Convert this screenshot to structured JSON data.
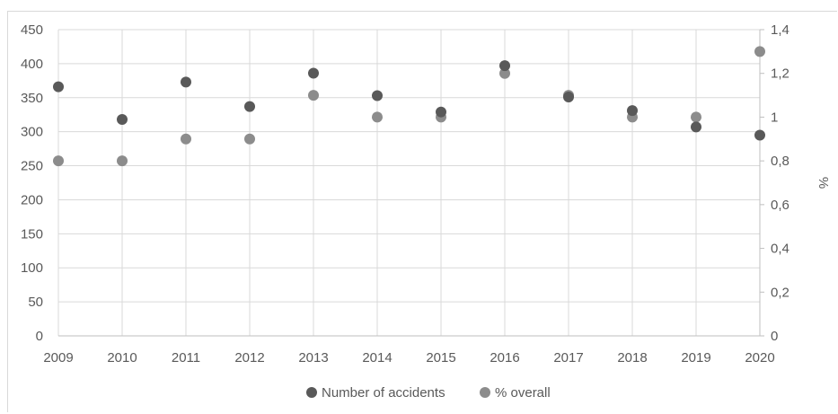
{
  "chart_data": {
    "type": "scatter",
    "title": "",
    "x": [
      2009,
      2010,
      2011,
      2012,
      2013,
      2014,
      2015,
      2016,
      2017,
      2018,
      2019,
      2020
    ],
    "x_tick_labels": [
      "2009",
      "2010",
      "2011",
      "2012",
      "2013",
      "2014",
      "2015",
      "2016",
      "2017",
      "2018",
      "2019",
      "2020"
    ],
    "xlim": [
      2009,
      2020
    ],
    "series": [
      {
        "name": "Number of accidents",
        "axis": "left",
        "color": "#595959",
        "values": [
          366,
          318,
          373,
          337,
          386,
          353,
          329,
          397,
          351,
          331,
          307,
          295
        ]
      },
      {
        "name": "% overall",
        "axis": "right",
        "color": "#8c8c8c",
        "values": [
          0.8,
          0.8,
          0.9,
          0.9,
          1.1,
          1.0,
          1.0,
          1.2,
          1.1,
          1.0,
          1.0,
          1.3
        ]
      }
    ],
    "y_left": {
      "label": "",
      "ylim": [
        0,
        450
      ],
      "ticks": [
        0,
        50,
        100,
        150,
        200,
        250,
        300,
        350,
        400,
        450
      ],
      "tick_labels": [
        "0",
        "50",
        "100",
        "150",
        "200",
        "250",
        "300",
        "350",
        "400",
        "450"
      ]
    },
    "y_right": {
      "label": "%",
      "ylim": [
        0,
        1.4
      ],
      "ticks": [
        0,
        0.2,
        0.4,
        0.6,
        0.8,
        1.0,
        1.2,
        1.4
      ],
      "tick_labels": [
        "0",
        "0,2",
        "0,4",
        "0,6",
        "0,8",
        "1",
        "1,2",
        "1,4"
      ]
    },
    "grid": true,
    "legend_position": "bottom"
  }
}
